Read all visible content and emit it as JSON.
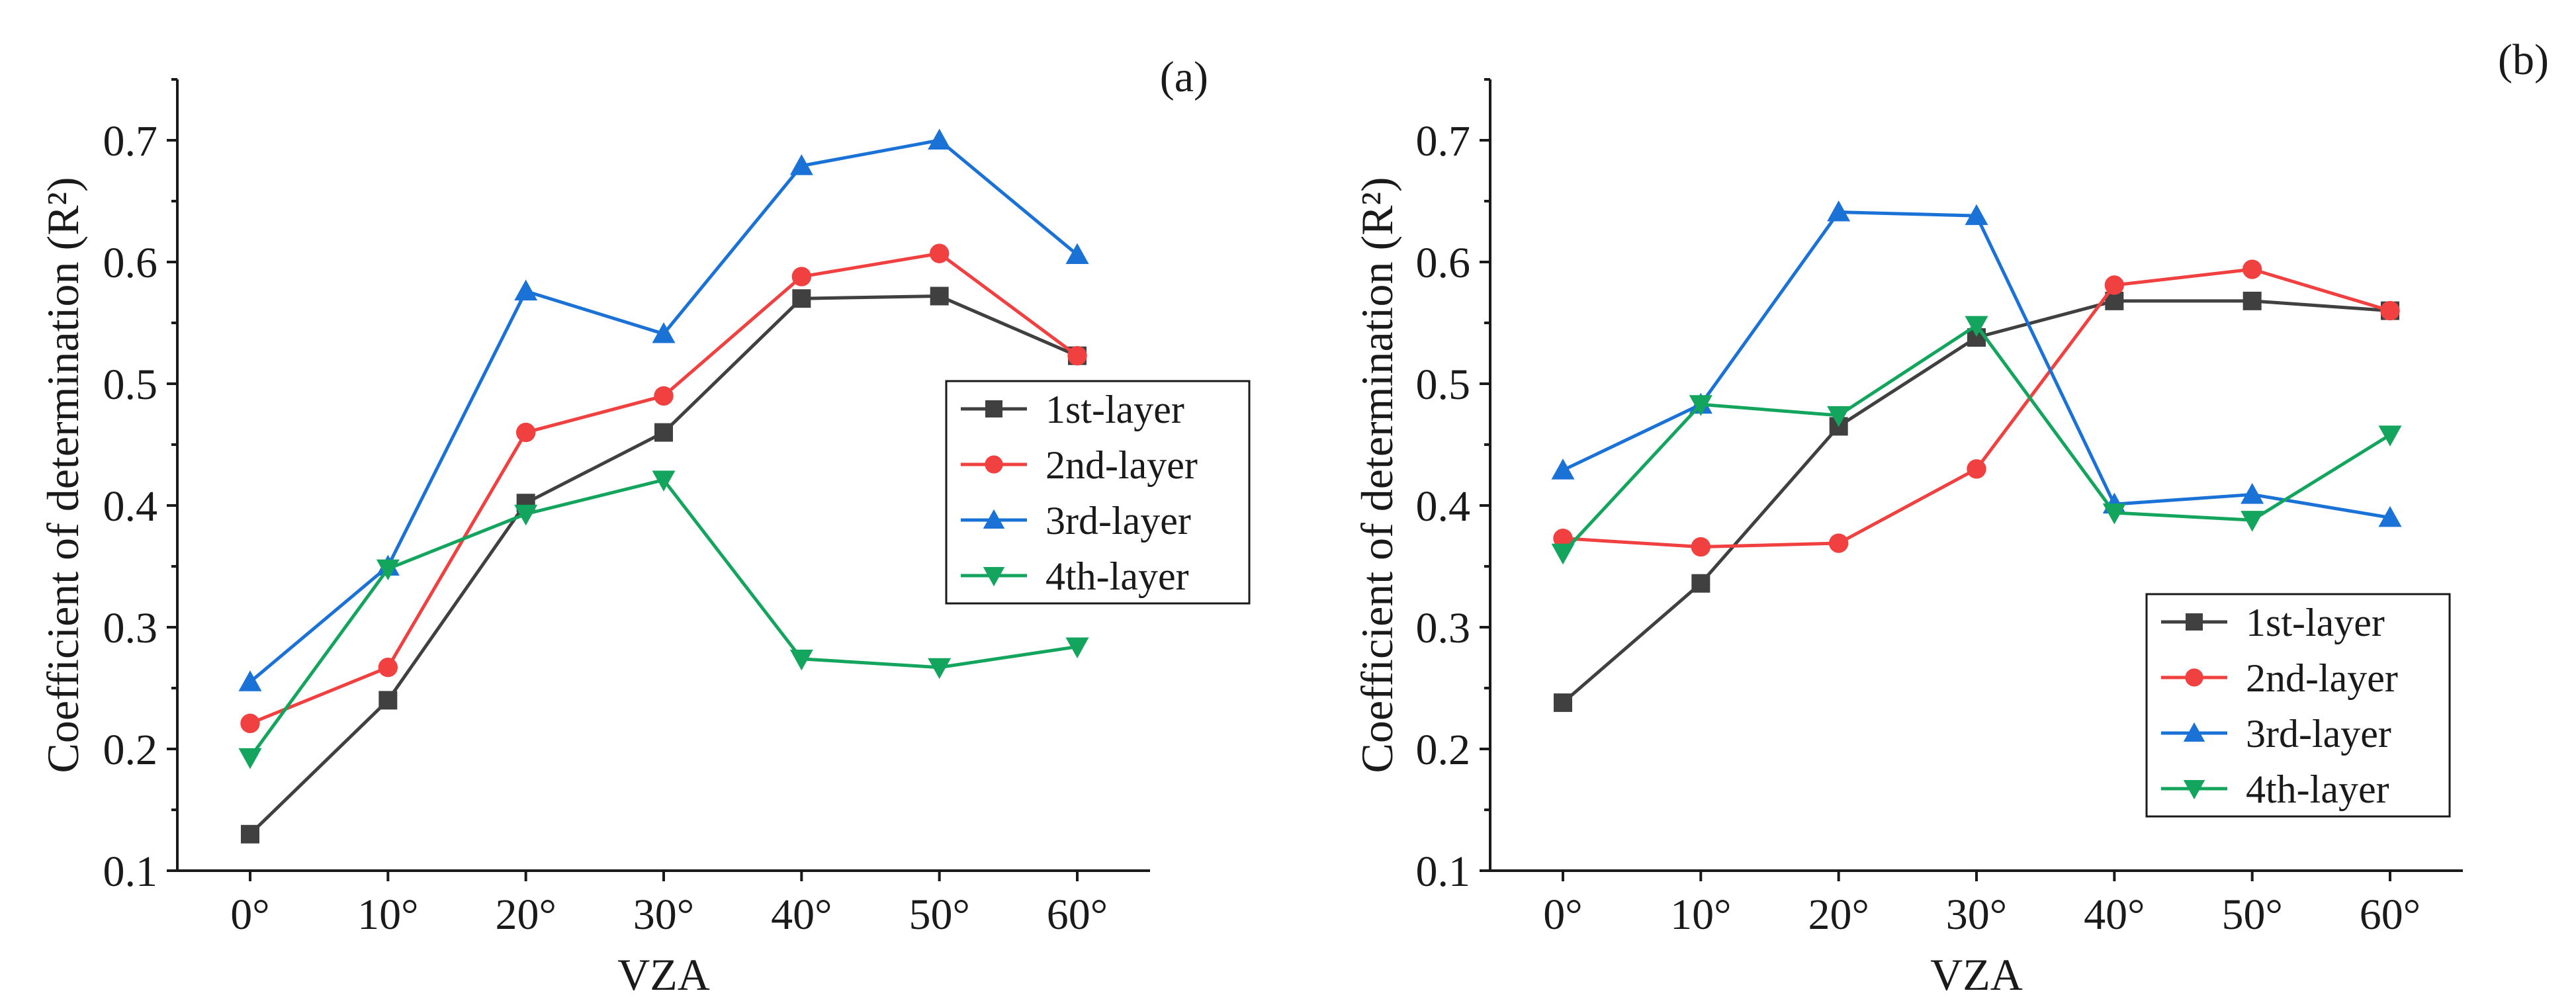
{
  "chart_data": [
    {
      "type": "line",
      "panel_label": "(a)",
      "xlabel": "VZA",
      "ylabel": "Coefficient of determination  (R²)",
      "categories": [
        "0°",
        "10°",
        "20°",
        "30°",
        "40°",
        "50°",
        "60°"
      ],
      "ylim": [
        0.1,
        0.75
      ],
      "yticks": [
        "0.1",
        "0.2",
        "0.3",
        "0.4",
        "0.5",
        "0.6",
        "0.7"
      ],
      "legend_position": "right-center",
      "series": [
        {
          "name": "1st-layer",
          "color": "#404040",
          "marker": "square",
          "values": [
            0.13,
            0.24,
            0.402,
            0.46,
            0.57,
            0.572,
            0.523
          ]
        },
        {
          "name": "2nd-layer",
          "color": "#f04040",
          "marker": "circle",
          "values": [
            0.221,
            0.267,
            0.46,
            0.49,
            0.588,
            0.607,
            0.523
          ]
        },
        {
          "name": "3rd-layer",
          "color": "#1a72d6",
          "marker": "triangle-up",
          "values": [
            0.255,
            0.35,
            0.576,
            0.541,
            0.679,
            0.7,
            0.606
          ]
        },
        {
          "name": "4th-layer",
          "color": "#13a55d",
          "marker": "triangle-down",
          "values": [
            0.193,
            0.348,
            0.393,
            0.421,
            0.274,
            0.267,
            0.284
          ]
        }
      ]
    },
    {
      "type": "line",
      "panel_label": "(b)",
      "xlabel": "VZA",
      "ylabel": "Coefficient of determination  (R²)",
      "categories": [
        "0°",
        "10°",
        "20°",
        "30°",
        "40°",
        "50°",
        "60°"
      ],
      "ylim": [
        0.1,
        0.75
      ],
      "yticks": [
        "0.1",
        "0.2",
        "0.3",
        "0.4",
        "0.5",
        "0.6",
        "0.7"
      ],
      "legend_position": "bottom-right",
      "series": [
        {
          "name": "1st-layer",
          "color": "#404040",
          "marker": "square",
          "values": [
            0.238,
            0.336,
            0.465,
            0.538,
            0.568,
            0.568,
            0.56
          ]
        },
        {
          "name": "2nd-layer",
          "color": "#f04040",
          "marker": "circle",
          "values": [
            0.373,
            0.366,
            0.369,
            0.43,
            0.581,
            0.594,
            0.56
          ]
        },
        {
          "name": "3rd-layer",
          "color": "#1a72d6",
          "marker": "triangle-up",
          "values": [
            0.429,
            0.483,
            0.641,
            0.638,
            0.401,
            0.409,
            0.39
          ]
        },
        {
          "name": "4th-layer",
          "color": "#13a55d",
          "marker": "triangle-down",
          "values": [
            0.361,
            0.483,
            0.474,
            0.548,
            0.394,
            0.388,
            0.458
          ]
        }
      ]
    }
  ]
}
